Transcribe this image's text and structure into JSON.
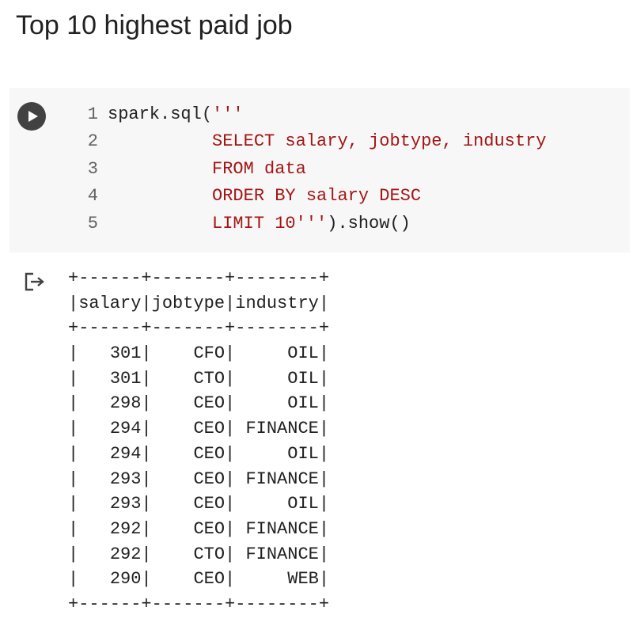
{
  "heading": "Top 10 highest paid job",
  "code_cell": {
    "run_icon": "play-icon",
    "lines": [
      {
        "number": "1",
        "code": "spark.sql(",
        "string": "'''",
        "tail": ""
      },
      {
        "number": "2",
        "code": "",
        "string": "          SELECT salary, jobtype, industry",
        "tail": ""
      },
      {
        "number": "3",
        "code": "",
        "string": "          FROM data",
        "tail": ""
      },
      {
        "number": "4",
        "code": "",
        "string": "          ORDER BY salary DESC",
        "tail": ""
      },
      {
        "number": "5",
        "code": "",
        "string": "          LIMIT 10'''",
        "tail": ").show()"
      }
    ]
  },
  "output": {
    "icon": "output-redirect-icon",
    "table": {
      "border": "+------+-------+--------+",
      "columns": [
        "salary",
        "jobtype",
        "industry"
      ],
      "rows": [
        [
          "301",
          "CFO",
          "OIL"
        ],
        [
          "301",
          "CTO",
          "OIL"
        ],
        [
          "298",
          "CEO",
          "OIL"
        ],
        [
          "294",
          "CEO",
          "FINANCE"
        ],
        [
          "294",
          "CEO",
          "OIL"
        ],
        [
          "293",
          "CEO",
          "FINANCE"
        ],
        [
          "293",
          "CEO",
          "OIL"
        ],
        [
          "292",
          "CEO",
          "FINANCE"
        ],
        [
          "292",
          "CTO",
          "FINANCE"
        ],
        [
          "290",
          "CEO",
          "WEB"
        ]
      ]
    }
  },
  "colors": {
    "string": "#a31515",
    "cell_background": "#f7f7f7",
    "run_button": "#424242"
  }
}
